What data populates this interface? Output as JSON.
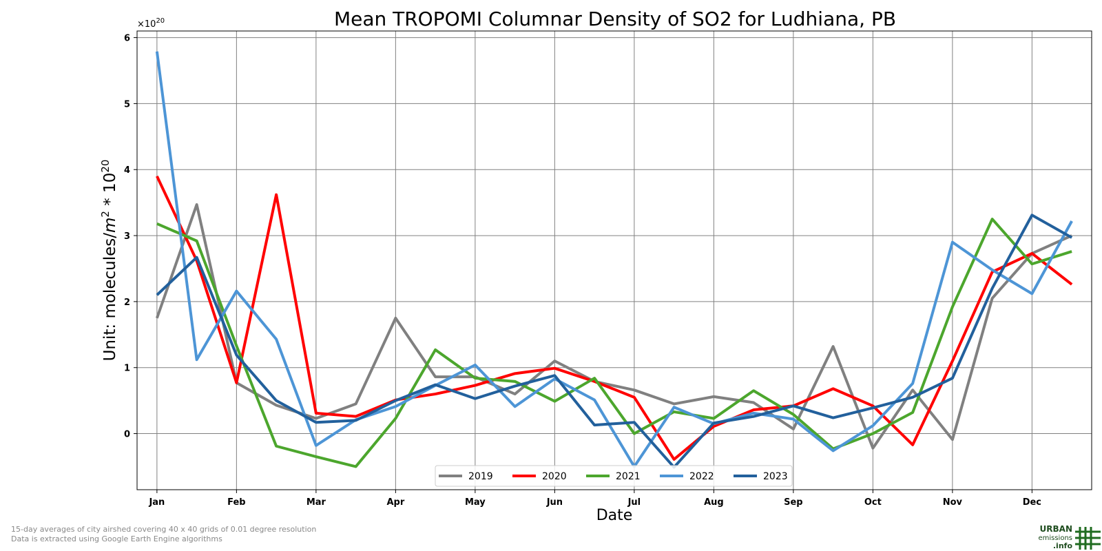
{
  "chart_data": {
    "type": "line",
    "title": "Mean TROPOMI Columnar Density of SO2 for Ludhiana, PB",
    "xlabel": "Date",
    "ylabel_prefix": "Unit: molecules/",
    "ylabel_m": "m",
    "ylabel_m_sup": "2",
    "ylabel_mid": " * 10",
    "ylabel_sup": "20",
    "y_offset_base": "×10",
    "y_offset_exp": "20",
    "xlim": [
      -0.5,
      23.5
    ],
    "ylim": [
      -0.85,
      6.1
    ],
    "month_ticks": [
      "Jan",
      "Feb",
      "Mar",
      "Apr",
      "May",
      "Jun",
      "Jul",
      "Aug",
      "Sep",
      "Oct",
      "Nov",
      "Dec"
    ],
    "y_ticks": [
      0,
      1,
      2,
      3,
      4,
      5,
      6
    ],
    "grid": true,
    "legend_position": "bottom-center",
    "series": [
      {
        "name": "2019",
        "color": "#808080",
        "values": [
          1.75,
          3.47,
          0.77,
          0.43,
          0.23,
          0.45,
          1.75,
          0.86,
          0.86,
          0.6,
          1.1,
          0.79,
          0.66,
          0.45,
          0.56,
          0.47,
          0.07,
          1.32,
          -0.22,
          0.66,
          -0.09,
          2.05,
          2.73,
          3.0
        ]
      },
      {
        "name": "2020",
        "color": "#ff0000",
        "values": [
          3.9,
          2.62,
          0.77,
          3.62,
          0.31,
          0.26,
          0.51,
          0.6,
          0.73,
          0.91,
          0.99,
          0.79,
          0.55,
          -0.39,
          0.11,
          0.36,
          0.42,
          0.68,
          0.42,
          -0.17,
          1.1,
          2.45,
          2.73,
          2.26
        ]
      },
      {
        "name": "2021",
        "color": "#4ca62d",
        "values": [
          3.18,
          2.92,
          1.33,
          -0.19,
          -0.35,
          -0.5,
          0.23,
          1.27,
          0.84,
          0.79,
          0.49,
          0.84,
          0.0,
          0.33,
          0.23,
          0.65,
          0.29,
          -0.23,
          0.0,
          0.32,
          1.92,
          3.25,
          2.57,
          2.76
        ]
      },
      {
        "name": "2022",
        "color": "#4d95d6",
        "values": [
          5.79,
          1.12,
          2.16,
          1.43,
          -0.18,
          0.21,
          0.41,
          0.73,
          1.04,
          0.41,
          0.83,
          0.51,
          -0.5,
          0.4,
          0.15,
          0.31,
          0.22,
          -0.26,
          0.12,
          0.76,
          2.9,
          2.48,
          2.12,
          3.22
        ]
      },
      {
        "name": "2023",
        "color": "#22609c",
        "values": [
          2.1,
          2.67,
          1.19,
          0.5,
          0.17,
          0.2,
          0.5,
          0.74,
          0.53,
          0.72,
          0.88,
          0.13,
          0.17,
          -0.51,
          0.16,
          0.26,
          0.42,
          0.24,
          0.39,
          0.55,
          0.84,
          2.2,
          3.31,
          2.97
        ]
      }
    ]
  },
  "footer": {
    "note_line1": "15-day averages of city airshed covering 40 x 40 grids of 0.01 degree resolution",
    "note_line2": "Data is extracted using Google Earth Engine algorithms"
  },
  "logo": {
    "line1": "URBAN",
    "line2": "emissions",
    "line3": ".info"
  }
}
